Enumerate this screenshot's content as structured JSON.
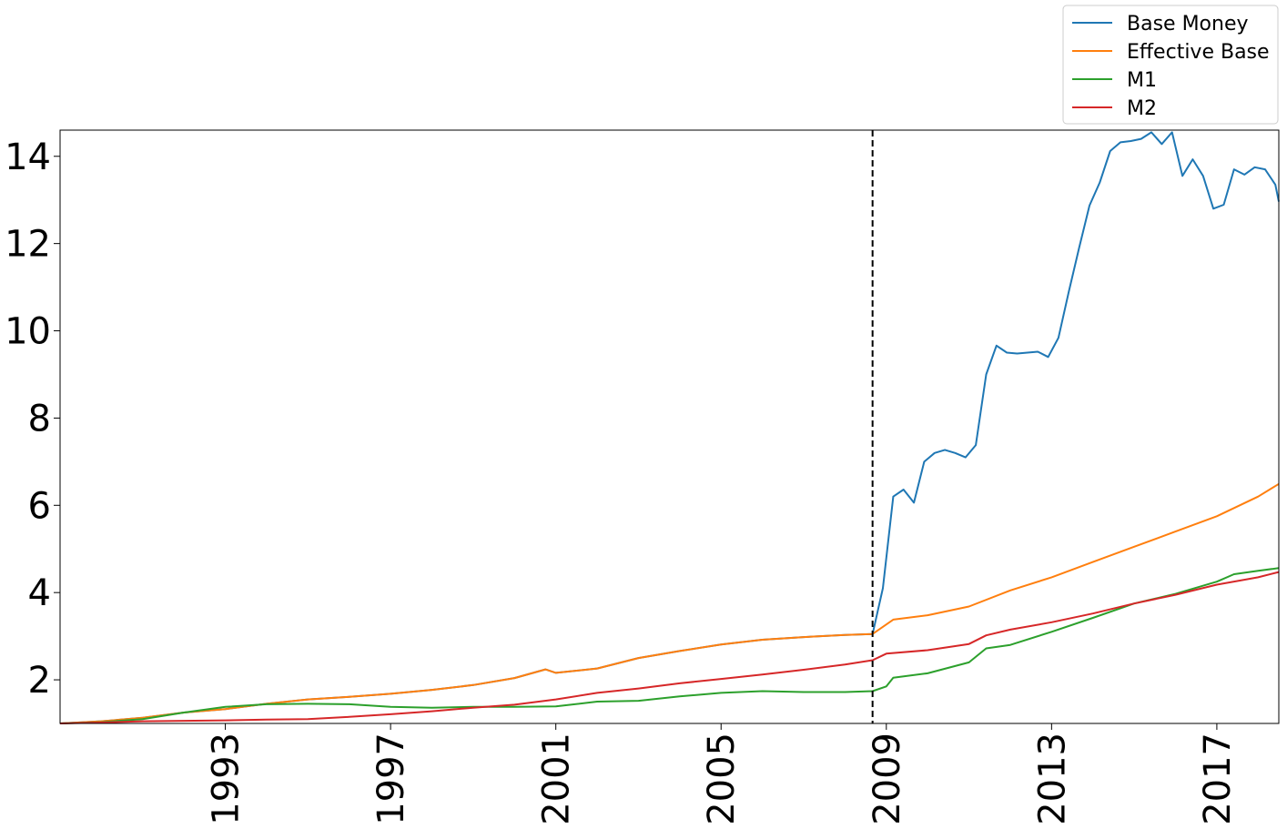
{
  "chart_data": {
    "type": "line",
    "title": "",
    "xlabel": "",
    "ylabel": "",
    "xlim": [
      "1989-01",
      "2018-07"
    ],
    "ylim": [
      1.0,
      14.6
    ],
    "grid": false,
    "legend_position": "top-right (above plot)",
    "xticks": [
      "1993",
      "1997",
      "2001",
      "2005",
      "2009",
      "2013",
      "2017"
    ],
    "yticks": [
      "2",
      "4",
      "6",
      "8",
      "10",
      "12",
      "14"
    ],
    "vline": {
      "x": "2008-09",
      "style": "dashed",
      "color": "#000000"
    },
    "series": [
      {
        "name": "Base Money",
        "color": "#1f77b4",
        "points": [
          [
            "1989-01",
            1.0
          ],
          [
            "1990-01",
            1.05
          ],
          [
            "1991-01",
            1.13
          ],
          [
            "1992-01",
            1.25
          ],
          [
            "1993-01",
            1.33
          ],
          [
            "1994-01",
            1.45
          ],
          [
            "1995-01",
            1.55
          ],
          [
            "1996-01",
            1.61
          ],
          [
            "1997-01",
            1.68
          ],
          [
            "1998-01",
            1.77
          ],
          [
            "1999-01",
            1.88
          ],
          [
            "2000-01",
            2.04
          ],
          [
            "2000-10",
            2.24
          ],
          [
            "2001-01",
            2.16
          ],
          [
            "2002-01",
            2.26
          ],
          [
            "2003-01",
            2.5
          ],
          [
            "2004-01",
            2.66
          ],
          [
            "2005-01",
            2.81
          ],
          [
            "2006-01",
            2.92
          ],
          [
            "2007-01",
            2.98
          ],
          [
            "2008-01",
            3.03
          ],
          [
            "2008-09",
            3.05
          ],
          [
            "2008-12",
            4.1
          ],
          [
            "2009-03",
            6.2
          ],
          [
            "2009-06",
            6.36
          ],
          [
            "2009-09",
            6.06
          ],
          [
            "2009-12",
            7.0
          ],
          [
            "2010-03",
            7.2
          ],
          [
            "2010-06",
            7.27
          ],
          [
            "2010-09",
            7.2
          ],
          [
            "2010-12",
            7.1
          ],
          [
            "2011-03",
            7.38
          ],
          [
            "2011-06",
            9.0
          ],
          [
            "2011-09",
            9.66
          ],
          [
            "2011-12",
            9.5
          ],
          [
            "2012-03",
            9.48
          ],
          [
            "2012-06",
            9.5
          ],
          [
            "2012-09",
            9.52
          ],
          [
            "2012-12",
            9.4
          ],
          [
            "2013-03",
            9.84
          ],
          [
            "2013-06",
            10.9
          ],
          [
            "2013-09",
            11.9
          ],
          [
            "2013-12",
            12.87
          ],
          [
            "2014-03",
            13.4
          ],
          [
            "2014-06",
            14.12
          ],
          [
            "2014-09",
            14.32
          ],
          [
            "2014-12",
            14.35
          ],
          [
            "2015-03",
            14.4
          ],
          [
            "2015-06",
            14.55
          ],
          [
            "2015-09",
            14.28
          ],
          [
            "2015-12",
            14.55
          ],
          [
            "2016-03",
            13.55
          ],
          [
            "2016-06",
            13.93
          ],
          [
            "2016-09",
            13.55
          ],
          [
            "2016-12",
            12.8
          ],
          [
            "2017-03",
            12.89
          ],
          [
            "2017-06",
            13.7
          ],
          [
            "2017-09",
            13.58
          ],
          [
            "2017-12",
            13.75
          ],
          [
            "2018-03",
            13.7
          ],
          [
            "2018-06",
            13.35
          ],
          [
            "2018-07",
            12.96
          ]
        ]
      },
      {
        "name": "Effective Base",
        "color": "#ff7f0e",
        "points": [
          [
            "1989-01",
            1.0
          ],
          [
            "1990-01",
            1.05
          ],
          [
            "1991-01",
            1.13
          ],
          [
            "1992-01",
            1.25
          ],
          [
            "1993-01",
            1.33
          ],
          [
            "1994-01",
            1.45
          ],
          [
            "1995-01",
            1.55
          ],
          [
            "1996-01",
            1.61
          ],
          [
            "1997-01",
            1.68
          ],
          [
            "1998-01",
            1.77
          ],
          [
            "1999-01",
            1.88
          ],
          [
            "2000-01",
            2.04
          ],
          [
            "2000-10",
            2.24
          ],
          [
            "2001-01",
            2.16
          ],
          [
            "2002-01",
            2.26
          ],
          [
            "2003-01",
            2.5
          ],
          [
            "2004-01",
            2.66
          ],
          [
            "2005-01",
            2.81
          ],
          [
            "2006-01",
            2.92
          ],
          [
            "2007-01",
            2.98
          ],
          [
            "2008-01",
            3.03
          ],
          [
            "2008-09",
            3.05
          ],
          [
            "2009-03",
            3.38
          ],
          [
            "2010-01",
            3.48
          ],
          [
            "2011-01",
            3.68
          ],
          [
            "2012-01",
            4.05
          ],
          [
            "2013-01",
            4.35
          ],
          [
            "2014-01",
            4.7
          ],
          [
            "2015-01",
            5.05
          ],
          [
            "2016-01",
            5.4
          ],
          [
            "2017-01",
            5.75
          ],
          [
            "2018-01",
            6.2
          ],
          [
            "2018-07",
            6.49
          ]
        ]
      },
      {
        "name": "M1",
        "color": "#2ca02c",
        "points": [
          [
            "1989-01",
            1.0
          ],
          [
            "1990-01",
            1.03
          ],
          [
            "1991-01",
            1.1
          ],
          [
            "1992-01",
            1.25
          ],
          [
            "1993-01",
            1.38
          ],
          [
            "1994-01",
            1.44
          ],
          [
            "1995-01",
            1.45
          ],
          [
            "1996-01",
            1.44
          ],
          [
            "1997-01",
            1.38
          ],
          [
            "1998-01",
            1.36
          ],
          [
            "1999-01",
            1.38
          ],
          [
            "2000-01",
            1.38
          ],
          [
            "2001-01",
            1.39
          ],
          [
            "2002-01",
            1.5
          ],
          [
            "2003-01",
            1.52
          ],
          [
            "2004-01",
            1.62
          ],
          [
            "2005-01",
            1.7
          ],
          [
            "2006-01",
            1.74
          ],
          [
            "2007-01",
            1.72
          ],
          [
            "2008-01",
            1.72
          ],
          [
            "2008-09",
            1.74
          ],
          [
            "2009-01",
            1.85
          ],
          [
            "2009-03",
            2.05
          ],
          [
            "2010-01",
            2.15
          ],
          [
            "2011-01",
            2.4
          ],
          [
            "2011-06",
            2.72
          ],
          [
            "2012-01",
            2.8
          ],
          [
            "2013-01",
            3.1
          ],
          [
            "2014-01",
            3.42
          ],
          [
            "2015-01",
            3.75
          ],
          [
            "2016-01",
            3.97
          ],
          [
            "2017-01",
            4.25
          ],
          [
            "2017-06",
            4.42
          ],
          [
            "2018-01",
            4.5
          ],
          [
            "2018-07",
            4.56
          ]
        ]
      },
      {
        "name": "M2",
        "color": "#d62728",
        "points": [
          [
            "1989-01",
            1.0
          ],
          [
            "1990-01",
            1.02
          ],
          [
            "1991-01",
            1.05
          ],
          [
            "1992-01",
            1.06
          ],
          [
            "1993-01",
            1.07
          ],
          [
            "1994-01",
            1.09
          ],
          [
            "1995-01",
            1.1
          ],
          [
            "1996-01",
            1.15
          ],
          [
            "1997-01",
            1.21
          ],
          [
            "1998-01",
            1.28
          ],
          [
            "1999-01",
            1.36
          ],
          [
            "2000-01",
            1.43
          ],
          [
            "2001-01",
            1.55
          ],
          [
            "2002-01",
            1.7
          ],
          [
            "2003-01",
            1.8
          ],
          [
            "2004-01",
            1.92
          ],
          [
            "2005-01",
            2.02
          ],
          [
            "2006-01",
            2.12
          ],
          [
            "2007-01",
            2.23
          ],
          [
            "2008-01",
            2.35
          ],
          [
            "2008-09",
            2.45
          ],
          [
            "2009-01",
            2.6
          ],
          [
            "2010-01",
            2.68
          ],
          [
            "2011-01",
            2.82
          ],
          [
            "2011-06",
            3.02
          ],
          [
            "2012-01",
            3.15
          ],
          [
            "2013-01",
            3.32
          ],
          [
            "2014-01",
            3.52
          ],
          [
            "2015-01",
            3.75
          ],
          [
            "2016-01",
            3.95
          ],
          [
            "2017-01",
            4.18
          ],
          [
            "2018-01",
            4.35
          ],
          [
            "2018-07",
            4.47
          ]
        ]
      }
    ]
  }
}
